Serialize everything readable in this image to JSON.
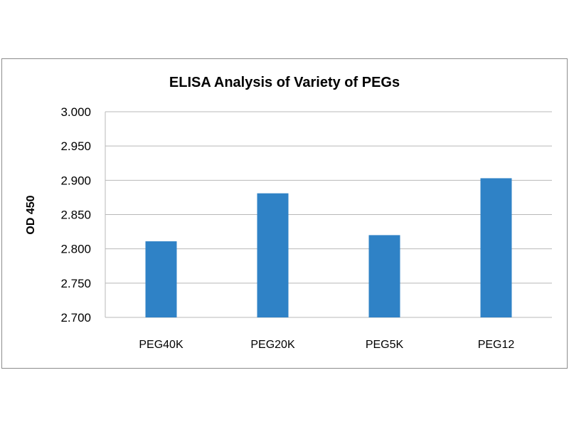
{
  "chart_data": {
    "type": "bar",
    "title": "ELISA Analysis of Variety of PEGs",
    "xlabel": "",
    "ylabel": "OD 450",
    "categories": [
      "PEG40K",
      "PEG20K",
      "PEG5K",
      "PEG12"
    ],
    "values": [
      2.811,
      2.881,
      2.82,
      2.903
    ],
    "ylim": [
      2.7,
      3.0
    ],
    "yticks": [
      "2.700",
      "2.750",
      "2.800",
      "2.850",
      "2.900",
      "2.950",
      "3.000"
    ],
    "grid": true,
    "legend": "none",
    "bar_color": "#2f82c6",
    "grid_color": "#b8b8b8"
  }
}
